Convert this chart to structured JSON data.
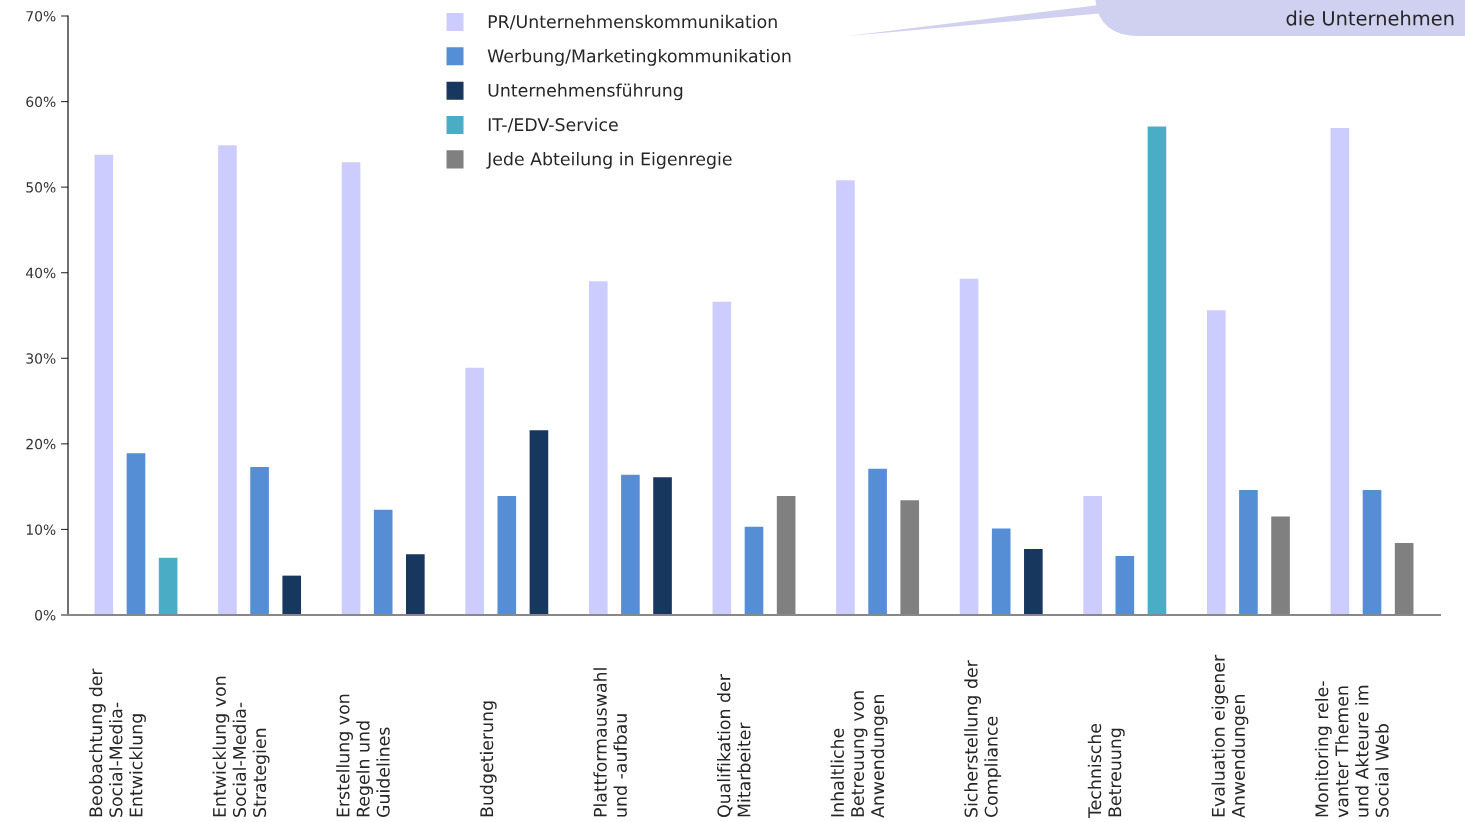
{
  "chart_data": {
    "type": "bar",
    "categories": [
      "Beobachtung der\nSocial-Media-\nEntwicklung",
      "Entwicklung von\nSocial-Media-\nStrategien",
      "Erstellung von\nRegeln und\nGuidelines",
      "Budgetierung",
      "Plattformauswahl\nund -aufbau",
      "Qualifikation der\nMitarbeiter",
      "Inhaltliche\nBetreuung von\nAnwendungen",
      "Sicherstellung der\nCompliance",
      "Technische\nBetreuung",
      "Evaluation eigener\nAnwendungen",
      "Monitoring rele-\nvanter Themen\nund Akteure im\nSocial Web"
    ],
    "series": [
      {
        "name": "PR/Unternehmenskommunikation",
        "color": "#ccccff",
        "values": [
          53.8,
          54.9,
          52.9,
          28.9,
          39.0,
          36.6,
          50.8,
          39.3,
          13.9,
          35.6,
          56.9
        ]
      },
      {
        "name": "Werbung/Marketingkommunikation",
        "color": "#558ed5",
        "values": [
          18.9,
          17.3,
          12.3,
          13.9,
          16.4,
          10.3,
          17.1,
          10.1,
          6.9,
          14.6,
          14.6
        ]
      },
      {
        "name": "Unternehmensführung",
        "color": "#17375e",
        "values": [
          null,
          4.6,
          7.1,
          21.6,
          16.1,
          null,
          null,
          7.7,
          null,
          null,
          null
        ]
      },
      {
        "name": "IT-/EDV-Service",
        "color": "#4bacc6",
        "values": [
          6.7,
          null,
          null,
          null,
          null,
          null,
          null,
          null,
          57.1,
          null,
          null
        ]
      },
      {
        "name": "Jede Abteilung in Eigenregie",
        "color": "#808080",
        "values": [
          null,
          null,
          null,
          null,
          null,
          13.9,
          13.4,
          null,
          null,
          11.5,
          8.4
        ]
      }
    ],
    "ylim": [
      0,
      70
    ],
    "yticks": [
      {
        "value": 0,
        "label": "0%"
      },
      {
        "value": 10,
        "label": "10%"
      },
      {
        "value": 20,
        "label": "20%"
      },
      {
        "value": 30,
        "label": "30%"
      },
      {
        "value": 40,
        "label": "40%"
      },
      {
        "value": 50,
        "label": "50%"
      },
      {
        "value": 60,
        "label": "60%"
      },
      {
        "value": 70,
        "label": "70%"
      }
    ],
    "grid": false,
    "legend": "top",
    "annotations": [
      "die Unternehmen"
    ]
  }
}
